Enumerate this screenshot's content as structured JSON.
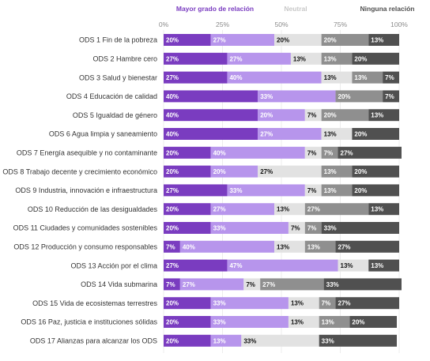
{
  "chart_data": {
    "type": "bar",
    "orientation": "horizontal",
    "stacked": true,
    "percent": true,
    "xlim": [
      0,
      100
    ],
    "x_ticks": [
      "0%",
      "25%",
      "50%",
      "75%",
      "100%"
    ],
    "legend_placement": "top",
    "legend": [
      {
        "label": "Mayor grado de relación",
        "color": "#7a3cc0"
      },
      {
        "label": "Neutral",
        "color": "#c8c8c8"
      },
      {
        "label": "Ninguna relación",
        "color": "#505050"
      }
    ],
    "categories": [
      "ODS 1 Fin de la pobreza",
      "ODS 2 Hambre cero",
      "ODS 3 Salud y bienestar",
      "ODS 4 Educación de calidad",
      "ODS 5 Igualdad de género",
      "ODS 6 Agua limpia y saneamiento",
      "ODS 7 Energía asequible y no contaminante",
      "ODS 8 Trabajo decente y crecimiento económico",
      "ODS 9 Industria, innovación e infraestructura",
      "ODS 10 Reducción de las desigualdades",
      "ODS 11 Ciudades y comunidades sostenibles",
      "ODS 12 Producción y consumo responsables",
      "ODS 13 Acción por el clima",
      "ODS 14 Vida submarina",
      "ODS 15 Vida de ecosistemas terrestres",
      "ODS 16 Paz, justicia e instituciones sólidas",
      "ODS 17 Alianzas para alcanzar los ODS"
    ],
    "series": [
      {
        "color": "#7a3cc0",
        "values": [
          20,
          27,
          27,
          40,
          40,
          40,
          20,
          20,
          27,
          20,
          20,
          7,
          27,
          7,
          20,
          20,
          20
        ]
      },
      {
        "color": "#b795ec",
        "values": [
          27,
          27,
          40,
          33,
          20,
          27,
          40,
          20,
          33,
          27,
          33,
          40,
          47,
          27,
          33,
          33,
          13
        ]
      },
      {
        "color": "#e2e2e2",
        "values": [
          20,
          13,
          13,
          0,
          7,
          13,
          7,
          27,
          7,
          13,
          7,
          13,
          13,
          7,
          13,
          13,
          33
        ]
      },
      {
        "color": "#8f8f8f",
        "values": [
          20,
          13,
          13,
          20,
          20,
          0,
          7,
          13,
          13,
          27,
          7,
          13,
          0,
          27,
          7,
          13,
          0
        ]
      },
      {
        "color": "#505050",
        "values": [
          13,
          20,
          7,
          7,
          13,
          20,
          27,
          20,
          20,
          13,
          33,
          27,
          13,
          33,
          27,
          20,
          33
        ]
      }
    ],
    "value_labels": [
      [
        "20%",
        "27%",
        "20%",
        "20%",
        "13%"
      ],
      [
        "27%",
        "27%",
        "13%",
        "13%",
        "20%"
      ],
      [
        "27%",
        "40%",
        "13%",
        "13%",
        "7%"
      ],
      [
        "40%",
        "33%",
        "",
        "20%",
        "7%"
      ],
      [
        "40%",
        "20%",
        "7%",
        "20%",
        "13%"
      ],
      [
        "40%",
        "27%",
        "13%",
        "",
        "20%"
      ],
      [
        "20%",
        "40%",
        "7%",
        "7%",
        "27%"
      ],
      [
        "20%",
        "20%",
        "27%",
        "13%",
        "20%"
      ],
      [
        "27%",
        "33%",
        "7%",
        "13%",
        "20%"
      ],
      [
        "20%",
        "27%",
        "13%",
        "27%",
        "13%"
      ],
      [
        "20%",
        "33%",
        "7%",
        "7%",
        "33%"
      ],
      [
        "7%",
        "40%",
        "13%",
        "13%",
        "27%"
      ],
      [
        "27%",
        "47%",
        "13%",
        "",
        "13%"
      ],
      [
        "7%",
        "27%",
        "7%",
        "27%",
        "33%"
      ],
      [
        "20%",
        "33%",
        "13%",
        "7%",
        "27%"
      ],
      [
        "20%",
        "33%",
        "13%",
        "13%",
        "20%"
      ],
      [
        "20%",
        "13%",
        "33%",
        "",
        "33%"
      ]
    ],
    "value_label_colors": [
      "#ffffff",
      "#ffffff",
      "#111111",
      "#ffffff",
      "#ffffff"
    ]
  }
}
